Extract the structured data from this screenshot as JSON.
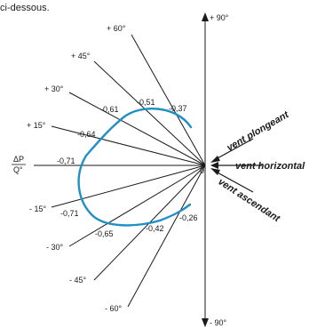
{
  "header": {
    "text": "ci-dessous."
  },
  "axis": {
    "top_label": "+ 90°",
    "bottom_label": "- 90°",
    "center_label": "0",
    "ratio_numerator": "ΔP",
    "ratio_denominator": "Q°"
  },
  "angles": [
    {
      "label": "+ 60°",
      "deg": 60
    },
    {
      "label": "+ 45°",
      "deg": 45
    },
    {
      "label": "+ 30°",
      "deg": 30
    },
    {
      "label": "+ 15°",
      "deg": 15
    },
    {
      "label": "- 15°",
      "deg": -15
    },
    {
      "label": "- 30°",
      "deg": -30
    },
    {
      "label": "- 45°",
      "deg": -45
    },
    {
      "label": "- 60°",
      "deg": -60
    }
  ],
  "values": [
    {
      "angle_deg": 60,
      "value": "-0,37"
    },
    {
      "angle_deg": 45,
      "value": "-0,51"
    },
    {
      "angle_deg": 30,
      "value": "-0,61"
    },
    {
      "angle_deg": 15,
      "value": "-0,64"
    },
    {
      "angle_deg": 0,
      "value": "-0,71"
    },
    {
      "angle_deg": -15,
      "value": "-0,71"
    },
    {
      "angle_deg": -30,
      "value": "-0,65"
    },
    {
      "angle_deg": -45,
      "value": "-0,42"
    },
    {
      "angle_deg": -60,
      "value": "-0,26"
    }
  ],
  "winds": {
    "plongeant": "vent plongeant",
    "horizontal": "vent horizontal",
    "ascendant": "vent ascendant"
  },
  "colors": {
    "curve": "#1f8fc4",
    "lines": "#1a1a1a"
  }
}
